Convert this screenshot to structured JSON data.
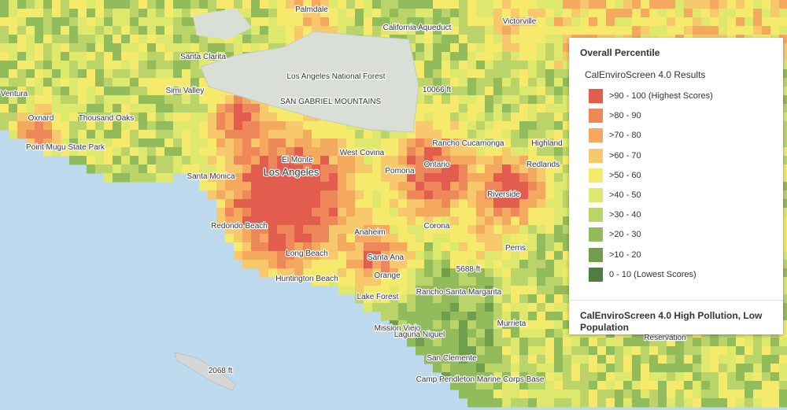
{
  "legend": {
    "title": "Overall Percentile",
    "layer_title": "CalEnviroScreen 4.0 Results",
    "items": [
      {
        "label": ">90 - 100 (Highest Scores)",
        "color": "#e35d4f"
      },
      {
        "label": ">80 - 90",
        "color": "#ee875a"
      },
      {
        "label": ">70 - 80",
        "color": "#f4a95e"
      },
      {
        "label": ">60 - 70",
        "color": "#f8c86c"
      },
      {
        "label": ">50 - 60",
        "color": "#f6ea6c"
      },
      {
        "label": ">40 - 50",
        "color": "#dde86c"
      },
      {
        "label": ">30 - 40",
        "color": "#bad46a"
      },
      {
        "label": ">20 - 30",
        "color": "#92bc5b"
      },
      {
        "label": ">10 - 20",
        "color": "#6f9f4c"
      },
      {
        "label": "0 - 10 (Lowest Scores)",
        "color": "#4e7f41"
      }
    ],
    "second_layer_title": "CalEnviroScreen 4.0 High Pollution, Low Population"
  },
  "places": [
    "Palmdale",
    "California Aqueduct",
    "Victorville",
    "Santa Clarita",
    "Los Angeles National Forest",
    "SAN GABRIEL MOUNTAINS",
    "10066 ft",
    "Simi Valley",
    "Ventura",
    "Oxnard",
    "Thousand Oaks",
    "Point Mugu State Park",
    "Santa Monica",
    "Los Angeles",
    "El Monte",
    "West Covina",
    "Pomona",
    "Ontario",
    "Rancho Cucamonga",
    "Highland",
    "Redlands",
    "Riverside",
    "Corona",
    "Perris",
    "Anaheim",
    "Santa Ana",
    "Orange",
    "Redondo Beach",
    "Long Beach",
    "Huntington Beach",
    "Lake Forest",
    "Mission Viejo",
    "Laguna Niguel",
    "Rancho Santa Margarita",
    "5688 ft",
    "Murrieta",
    "San Clemente",
    "Camp Pendleton Marine Corps Base",
    "2068 ft",
    "Reservation"
  ]
}
